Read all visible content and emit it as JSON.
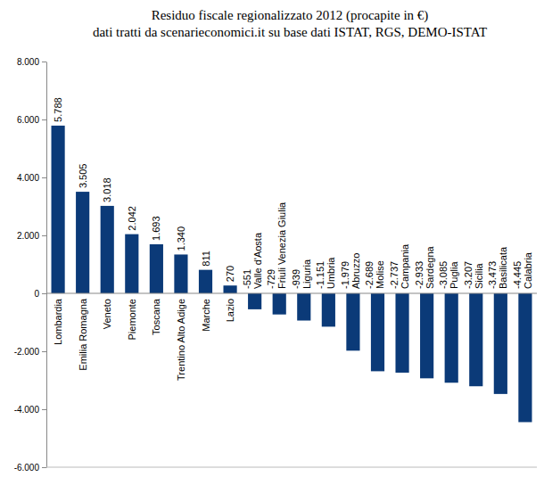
{
  "chart_data": {
    "type": "bar",
    "title": "Residuo fiscale regionalizzato 2012 (procapite in €)",
    "subtitle": "dati tratti da scenarieconomici.it su base dati ISTAT, RGS, DEMO-ISTAT",
    "categories": [
      "Lombardia",
      "Emilia Romagna",
      "Veneto",
      "Piemonte",
      "Toscana",
      "Trentino Alto Adige",
      "Marche",
      "Lazio",
      "Valle d'Aosta",
      "Friuli Venezia Giulia",
      "Liguria",
      "Umbria",
      "Abruzzo",
      "Molise",
      "Campania",
      "Sardegna",
      "Puglia",
      "Sicilia",
      "Basilicata",
      "Calabria"
    ],
    "values": [
      5788,
      3505,
      3018,
      2042,
      1693,
      1340,
      811,
      270,
      -551,
      -729,
      -939,
      -1151,
      -1979,
      -2689,
      -2737,
      -2933,
      -3085,
      -3207,
      -3473,
      -4445
    ],
    "value_labels": [
      "5.788",
      "3.505",
      "3.018",
      "2.042",
      "1.693",
      "1.340",
      "811",
      "270",
      "-551",
      "-729",
      "-939",
      "-1.151",
      "-1.979",
      "-2.689",
      "-2.737",
      "-2.933",
      "-3.085",
      "-3.207",
      "-3.473",
      "-4.445"
    ],
    "color": "#0b3a78",
    "ylim": [
      -6000,
      8000
    ],
    "yticks": [
      {
        "value": -6000,
        "label": "-6.000"
      },
      {
        "value": -4000,
        "label": "-4.000"
      },
      {
        "value": -2000,
        "label": "-2.000"
      },
      0,
      {
        "value": 2000,
        "label": "2.000"
      },
      {
        "value": 4000,
        "label": "4.000"
      },
      {
        "value": 6000,
        "label": "6.000"
      },
      {
        "value": 8000,
        "label": "8.000"
      }
    ],
    "grid": false,
    "data_labels": true
  }
}
